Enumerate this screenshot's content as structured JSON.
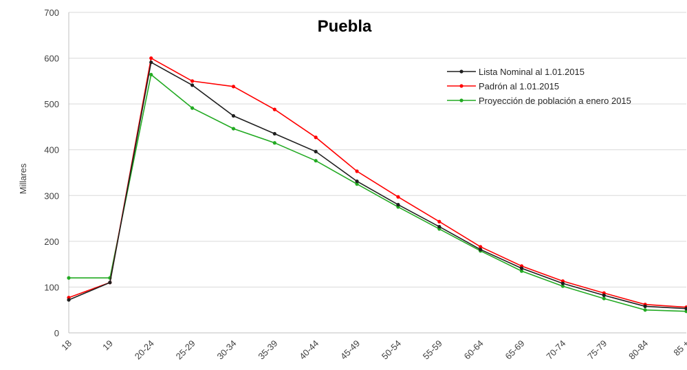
{
  "chart_data": {
    "type": "line",
    "title": "Puebla",
    "xlabel": "",
    "ylabel": "Millares",
    "ylim": [
      0,
      700
    ],
    "yticks": [
      0,
      100,
      200,
      300,
      400,
      500,
      600,
      700
    ],
    "grid": true,
    "legend_position": "top-right",
    "categories": [
      "18",
      "19",
      "20-24",
      "25-29",
      "30-34",
      "35-39",
      "40-44",
      "45-49",
      "50-54",
      "55-59",
      "60-64",
      "65-69",
      "70-74",
      "75-79",
      "80-84",
      "85 +"
    ],
    "series": [
      {
        "name": "Lista Nominal al 1.01.2015",
        "color": "#1f1f1f",
        "values": [
          72,
          110,
          591,
          541,
          474,
          435,
          396,
          331,
          280,
          232,
          182,
          141,
          108,
          82,
          58,
          53
        ]
      },
      {
        "name": "Padrón al 1.01.2015",
        "color": "#ff0000",
        "values": [
          77,
          110,
          600,
          550,
          538,
          488,
          427,
          353,
          297,
          243,
          188,
          146,
          113,
          87,
          62,
          56
        ]
      },
      {
        "name": "Proyección de población a enero 2015",
        "color": "#22aa22",
        "values": [
          120,
          120,
          564,
          491,
          446,
          415,
          376,
          325,
          275,
          227,
          179,
          135,
          102,
          75,
          50,
          47
        ]
      }
    ]
  }
}
